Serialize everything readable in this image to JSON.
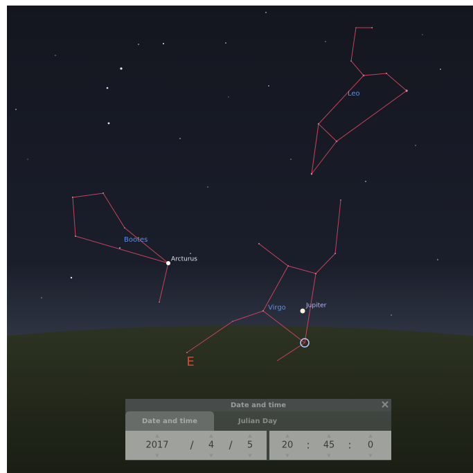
{
  "sky": {
    "constellations": [
      "Leo",
      "Bootes",
      "Virgo"
    ],
    "stars": [
      "Arcturus"
    ],
    "planets": [
      "Jupiter"
    ],
    "cardinal": "E"
  },
  "dialog": {
    "title": "Date and time",
    "tabs": [
      "Date and time",
      "Julian Day"
    ],
    "date": {
      "year": 2017,
      "month": 4,
      "day": 5,
      "separators": [
        "/",
        "/"
      ]
    },
    "time": {
      "hour": 20,
      "minute": 45,
      "second": 0,
      "separators": [
        ":",
        ":"
      ]
    }
  }
}
